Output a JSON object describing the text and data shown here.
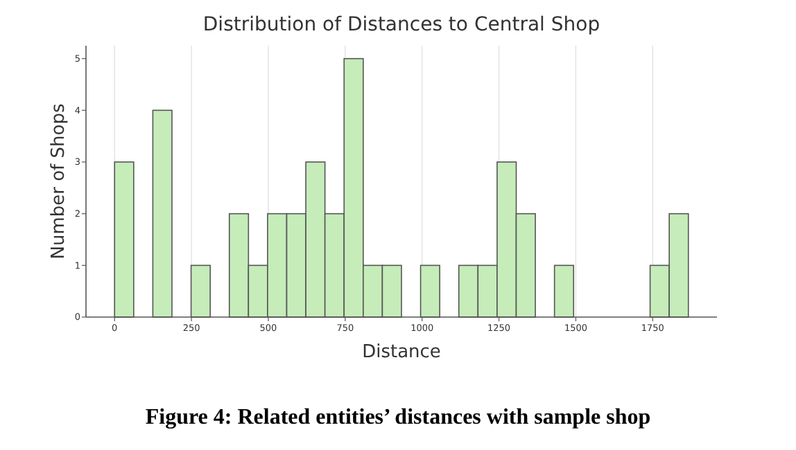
{
  "chart_data": {
    "type": "histogram",
    "title": "Distribution of Distances to Central Shop",
    "xlabel": "Distance",
    "ylabel": "Number of Shops",
    "annotations": [
      "Figure 4: Related entities’ distances with sample shop"
    ],
    "bins": [
      0,
      62.2,
      124.4,
      186.6,
      248.8,
      311,
      373.2,
      435.4,
      497.6,
      559.8,
      622,
      684.2,
      746.4,
      808.6,
      870.8,
      933,
      995.2,
      1057.4,
      1119.6,
      1181.8,
      1244,
      1306.2,
      1368.4,
      1430.6,
      1492.8,
      1555,
      1617.2,
      1679.4,
      1741.6,
      1803.8,
      1866
    ],
    "values": [
      3,
      0,
      4,
      0,
      1,
      0,
      2,
      1,
      2,
      2,
      3,
      2,
      5,
      1,
      1,
      0,
      1,
      0,
      1,
      1,
      3,
      2,
      0,
      1,
      0,
      0,
      0,
      0,
      1,
      2
    ],
    "color": "#c5ecb9",
    "xlim": [
      -93,
      1959
    ],
    "xticks": [
      0,
      250,
      500,
      750,
      1000,
      1250,
      1500,
      1750
    ],
    "ylim": [
      0,
      5.25
    ],
    "yticks": [
      0,
      1,
      2,
      3,
      4,
      5
    ],
    "grid": "x"
  }
}
